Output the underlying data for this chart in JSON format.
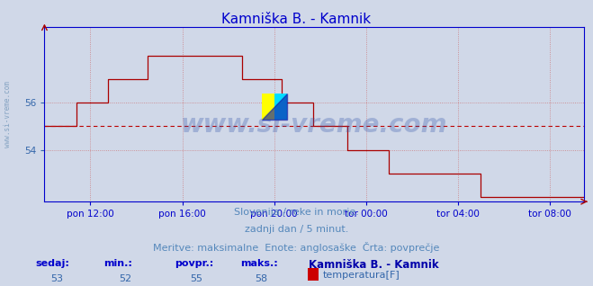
{
  "title": "Kamniška B. - Kamnik",
  "title_color": "#0000cc",
  "bg_color": "#d0d8e8",
  "plot_bg_color": "#d0d8e8",
  "line_color": "#aa0000",
  "avg_line_color": "#bb0000",
  "grid_color": "#cc6666",
  "axis_color": "#0000cc",
  "tick_color": "#3366aa",
  "ymin": 51.8,
  "ymax": 59.2,
  "avg_value": 55.0,
  "yticks": [
    54,
    56
  ],
  "x_tick_positions": [
    2,
    6,
    10,
    14,
    18,
    22
  ],
  "x_tick_labels": [
    "pon 12:00",
    "pon 16:00",
    "pon 20:00",
    "tor 00:00",
    "tor 04:00",
    "tor 08:00"
  ],
  "total_hours": 23.5,
  "subtitle1": "Slovenija / reke in morje.",
  "subtitle2": "zadnji dan / 5 minut.",
  "subtitle3": "Meritve: maksimalne  Enote: anglosaške  Črta: povprečje",
  "footer_labels": [
    "sedaj:",
    "min.:",
    "povpr.:",
    "maks.:"
  ],
  "footer_values": [
    "53",
    "52",
    "55",
    "58"
  ],
  "footer_station": "Kamniška B. - Kamnik",
  "footer_sensor": "temperatura[F]",
  "legend_color": "#cc0000",
  "sidebar_text": "www.si-vreme.com",
  "watermark": "www.si-vreme.com",
  "watermark_color": "#3355aa",
  "watermark_alpha": 0.3,
  "sidebar_color": "#7799bb",
  "subtitle_color": "#5588bb",
  "footer_label_color": "#0000cc",
  "footer_value_color": "#3366aa",
  "footer_station_color": "#0000aa"
}
